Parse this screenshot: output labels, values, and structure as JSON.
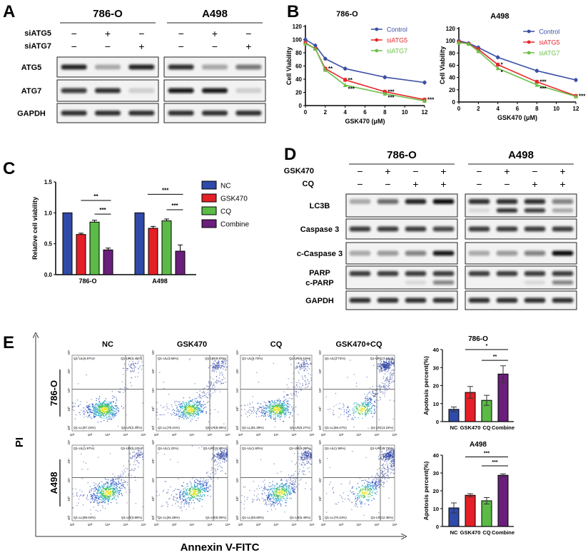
{
  "colors": {
    "control": "#3a4fa6",
    "siATG5": "#e8262a",
    "siATG7": "#6cc04a",
    "NC": "#2f4aa8",
    "GSK470": "#e41f26",
    "CQ": "#5cba47",
    "Combine": "#6a1f7a"
  },
  "panelA": {
    "letter": "A",
    "groups": [
      "786-O",
      "A498"
    ],
    "row_labels": [
      "siATG5",
      "siATG7"
    ],
    "signs": [
      [
        "−",
        "+",
        "−"
      ],
      [
        "−",
        "−",
        "+"
      ]
    ],
    "blots": [
      {
        "label": "ATG5",
        "intensity": [
          [
            0.9,
            0.3,
            0.9
          ],
          [
            0.85,
            0.35,
            0.55
          ]
        ]
      },
      {
        "label": "ATG7",
        "intensity": [
          [
            0.8,
            0.85,
            0.15
          ],
          [
            0.95,
            0.95,
            0.15
          ]
        ]
      },
      {
        "label": "GAPDH",
        "intensity": [
          [
            0.85,
            0.85,
            0.85
          ],
          [
            0.85,
            0.85,
            0.85
          ]
        ]
      }
    ]
  },
  "chart_data": [
    {
      "type": "line",
      "panel": "B",
      "title": "786-O",
      "xlabel": "GSK470 (μM)",
      "ylabel": "Cell Viability",
      "xlim": [
        0,
        12
      ],
      "ylim": [
        0,
        120
      ],
      "xticks": [
        0,
        2,
        4,
        6,
        8,
        10,
        12
      ],
      "yticks": [
        0,
        20,
        40,
        60,
        80,
        100,
        120
      ],
      "legend": "top-right",
      "x": [
        0,
        1,
        2,
        4,
        8,
        12
      ],
      "series": [
        {
          "name": "Control",
          "values": [
            100,
            91,
            71,
            56,
            43,
            35
          ],
          "marker": "circle",
          "color": "#3a4fa6",
          "labels": [
            "",
            "",
            "",
            "",
            "",
            ""
          ]
        },
        {
          "name": "siATG5",
          "values": [
            95,
            86,
            56,
            39,
            21,
            9
          ],
          "marker": "square",
          "color": "#e8262a",
          "labels": [
            "",
            "",
            "**",
            "**",
            "***",
            "***"
          ]
        },
        {
          "name": "siATG7",
          "values": [
            94,
            86,
            54,
            31,
            18,
            7
          ],
          "marker": "triangle",
          "color": "#6cc04a",
          "labels": [
            "",
            "",
            "",
            "***",
            "***",
            ""
          ]
        }
      ]
    },
    {
      "type": "line",
      "panel": "B",
      "title": "A498",
      "xlabel": "GSK470 (μM)",
      "ylabel": "Cell Viability",
      "xlim": [
        0,
        12
      ],
      "ylim": [
        0,
        120
      ],
      "xticks": [
        0,
        2,
        4,
        6,
        8,
        10,
        12
      ],
      "yticks": [
        0,
        20,
        40,
        60,
        80,
        100,
        120
      ],
      "legend": "top-right",
      "x": [
        0,
        1,
        2,
        4,
        8,
        12
      ],
      "series": [
        {
          "name": "Control",
          "values": [
            100,
            96,
            89,
            73,
            51,
            36
          ],
          "marker": "circle",
          "color": "#3a4fa6",
          "labels": [
            "",
            "",
            "",
            "",
            "",
            ""
          ]
        },
        {
          "name": "siATG5",
          "values": [
            98,
            95,
            86,
            61,
            33,
            10
          ],
          "marker": "square",
          "color": "#e8262a",
          "labels": [
            "",
            "",
            "",
            "*",
            "***",
            "***"
          ]
        },
        {
          "name": "siATG7",
          "values": [
            97,
            95,
            83,
            55,
            28,
            9
          ],
          "marker": "triangle",
          "color": "#6cc04a",
          "labels": [
            "",
            "",
            "",
            "*",
            "***",
            ""
          ]
        }
      ]
    },
    {
      "type": "bar",
      "panel": "C",
      "ylabel": "Relative cell viability",
      "ylim": [
        0,
        1.5
      ],
      "yticks": [
        "0.0",
        "0.5",
        "1.0",
        "1.5"
      ],
      "legend": "right",
      "categories": [
        "786-O",
        "A498"
      ],
      "series": [
        {
          "name": "NC",
          "values": [
            1.0,
            1.0
          ],
          "errors": [
            0,
            0
          ]
        },
        {
          "name": "GSK470",
          "values": [
            0.65,
            0.75
          ],
          "errors": [
            0.02,
            0.03
          ]
        },
        {
          "name": "CQ",
          "values": [
            0.85,
            0.87
          ],
          "errors": [
            0.03,
            0.03
          ]
        },
        {
          "name": "Combine",
          "values": [
            0.4,
            0.38
          ],
          "errors": [
            0.03,
            0.1
          ]
        }
      ],
      "significance": [
        {
          "group": 0,
          "from": 1,
          "to": 3,
          "label": "**",
          "y": 1.2
        },
        {
          "group": 0,
          "from": 2,
          "to": 3,
          "label": "***",
          "y": 0.98
        },
        {
          "group": 1,
          "from": 0.6,
          "to": 3,
          "label": "***",
          "y": 1.3
        },
        {
          "group": 1,
          "from": 2,
          "to": 3,
          "label": "***",
          "y": 1.05
        }
      ]
    },
    {
      "type": "bar",
      "panel": "E",
      "title": "786-O",
      "ylabel": "Apotosis percent(%)",
      "ylim": [
        0,
        40
      ],
      "yticks": [
        "0",
        "10",
        "20",
        "30",
        "40"
      ],
      "categories": [
        "NC",
        "GSK470",
        "CQ",
        "Combine"
      ],
      "values": [
        6.8,
        16.2,
        11.8,
        26.4
      ],
      "errors": [
        1.3,
        3.3,
        2.8,
        4.6
      ],
      "significance": [
        {
          "from": 1,
          "to": 3,
          "label": "*",
          "y": 40
        },
        {
          "from": 2,
          "to": 3,
          "label": "**",
          "y": 34
        }
      ]
    },
    {
      "type": "bar",
      "panel": "E",
      "title": "A498",
      "ylabel": "Apotosis percent(%)",
      "ylim": [
        0,
        40
      ],
      "yticks": [
        "0",
        "10",
        "20",
        "30",
        "40"
      ],
      "categories": [
        "NC",
        "GSK470",
        "CQ",
        "Combine"
      ],
      "values": [
        10.4,
        17.5,
        14.4,
        28.7
      ],
      "errors": [
        2.8,
        0.9,
        1.8,
        0.8
      ],
      "significance": [
        {
          "from": 1,
          "to": 3,
          "label": "***",
          "y": 39
        },
        {
          "from": 2,
          "to": 3,
          "label": "***",
          "y": 34
        }
      ]
    }
  ],
  "panelB": {
    "letter": "B"
  },
  "panelC": {
    "letter": "C"
  },
  "panelD": {
    "letter": "D",
    "groups": [
      "786-O",
      "A498"
    ],
    "row_labels": [
      "GSK470",
      "CQ"
    ],
    "signs": [
      [
        "−",
        "+",
        "−",
        "+"
      ],
      [
        "−",
        "−",
        "+",
        "+"
      ]
    ],
    "blots": [
      {
        "label": "LC3B",
        "intensity": [
          [
            0.3,
            0.6,
            0.9,
            1.0
          ],
          [
            0.85,
            0.85,
            0.85,
            0.5
          ]
        ],
        "lower": [
          [
            0,
            0,
            0,
            0
          ],
          [
            0.1,
            0.85,
            0.8,
            0.3
          ]
        ]
      },
      {
        "label": "Caspase 3",
        "intensity": [
          [
            0.8,
            0.8,
            0.8,
            0.75
          ],
          [
            0.8,
            0.8,
            0.8,
            0.8
          ]
        ]
      },
      {
        "label": "c-Caspase 3",
        "intensity": [
          [
            0.3,
            0.4,
            0.5,
            0.95
          ],
          [
            0.3,
            0.4,
            0.5,
            1.0
          ]
        ]
      },
      {
        "label": "PARP",
        "label2": "c-PARP",
        "intensity": [
          [
            0.8,
            0.8,
            0.8,
            0.8
          ],
          [
            0.8,
            0.8,
            0.8,
            0.8
          ]
        ],
        "lower": [
          [
            0,
            0,
            0.1,
            0.5
          ],
          [
            0,
            0,
            0.1,
            0.5
          ]
        ]
      },
      {
        "label": "GAPDH",
        "intensity": [
          [
            0.85,
            0.85,
            0.85,
            0.85
          ],
          [
            0.85,
            0.85,
            0.85,
            0.85
          ]
        ]
      }
    ]
  },
  "panelE": {
    "letter": "E",
    "columns": [
      "NC",
      "GSK470",
      "CQ",
      "GSK470+CQ"
    ],
    "rows": [
      "786-O",
      "A498"
    ],
    "y_axis_label": "PI",
    "x_axis_label": "Annexin V-FITC",
    "axis_ticks": [
      "10²",
      "10³",
      "10⁴",
      "10⁵",
      "10⁶"
    ],
    "quadrants": [
      [
        {
          "UL": "Q1-UL(6.97%)",
          "UR": "Q1-UR(3.45%)",
          "LL": "Q1-LL(87.24%)",
          "LR": "Q1-LR(2.34%)"
        },
        {
          "UL": "Q1-UL(3.66%)",
          "UR": "Q1-UR(9.87%)",
          "LL": "Q1-LL(78.41%)",
          "LR": "Q1-LR(8.06%)"
        },
        {
          "UL": "Q1-UL(6.73%)",
          "UR": "Q1-UR(6.61%)",
          "LL": "Q1-LL(81.39%)",
          "LR": "Q1-LR(5.27%)"
        },
        {
          "UL": "Q1-UL(2.74%)",
          "UR": "Q1-UR(17.64%)",
          "LL": "Q1-LL(66.47%)",
          "LR": "Q1-LR(13.15%)"
        }
      ],
      [
        {
          "UL": "Q1-UL(1.97%)",
          "UR": "Q1-UR(5.10%)",
          "LL": "Q1-LL(89.04%)",
          "LR": "Q1-LR(3.89%)"
        },
        {
          "UL": "Q1-UL(1.22%)",
          "UR": "Q1-UR(10.83%)",
          "LL": "Q1-LL(81.86%)",
          "LR": "Q1-LR(6.09%)"
        },
        {
          "UL": "Q1-UL(1.83%)",
          "UR": "Q1-UR(9.09%)",
          "LL": "Q1-LL(83.60%)",
          "LR": "Q1-LR(5.49%)"
        },
        {
          "UL": "Q1-UL(1.59%)",
          "UR": "Q1-UR(15.73%)",
          "LL": "Q1-LL(70.24%)",
          "LR": "Q1-LR(12.45%)"
        }
      ]
    ]
  }
}
